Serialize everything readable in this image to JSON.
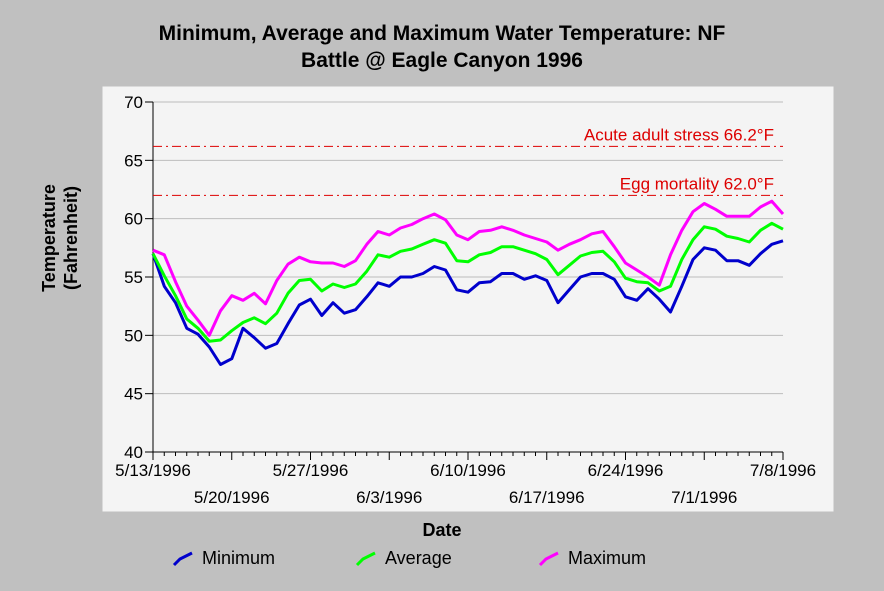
{
  "title_line1": "Minimum, Average and Maximum Water Temperature: NF",
  "title_line2": "Battle @ Eagle Canyon 1996",
  "chart_data": {
    "type": "line",
    "title": "Minimum, Average and Maximum Water Temperature: NF Battle @ Eagle Canyon 1996",
    "xlabel": "Date",
    "ylabel_line1": "Temperature",
    "ylabel_line2": "(Fahrenheit)",
    "ylim": [
      40,
      70
    ],
    "yticks": [
      40,
      45,
      50,
      55,
      60,
      65,
      70
    ],
    "xlim": [
      "1996-05-13",
      "1996-07-08"
    ],
    "xticks_top_row": [
      "5/13/1996",
      "5/27/1996",
      "6/10/1996",
      "6/24/1996",
      "7/8/1996"
    ],
    "xticks_bottom_row": [
      "5/20/1996",
      "6/3/1996",
      "6/17/1996",
      "7/1/1996"
    ],
    "grid": true,
    "legend_position": "bottom",
    "x": [
      "1996-05-13",
      "1996-05-14",
      "1996-05-15",
      "1996-05-16",
      "1996-05-17",
      "1996-05-18",
      "1996-05-19",
      "1996-05-20",
      "1996-05-21",
      "1996-05-22",
      "1996-05-23",
      "1996-05-24",
      "1996-05-25",
      "1996-05-26",
      "1996-05-27",
      "1996-05-28",
      "1996-05-29",
      "1996-05-30",
      "1996-05-31",
      "1996-06-01",
      "1996-06-02",
      "1996-06-03",
      "1996-06-04",
      "1996-06-05",
      "1996-06-06",
      "1996-06-07",
      "1996-06-08",
      "1996-06-09",
      "1996-06-10",
      "1996-06-11",
      "1996-06-12",
      "1996-06-13",
      "1996-06-14",
      "1996-06-15",
      "1996-06-16",
      "1996-06-17",
      "1996-06-18",
      "1996-06-19",
      "1996-06-20",
      "1996-06-21",
      "1996-06-22",
      "1996-06-23",
      "1996-06-24",
      "1996-06-25",
      "1996-06-26",
      "1996-06-27",
      "1996-06-28",
      "1996-06-29",
      "1996-06-30",
      "1996-07-01",
      "1996-07-02",
      "1996-07-03",
      "1996-07-04",
      "1996-07-05",
      "1996-07-06",
      "1996-07-07",
      "1996-07-08"
    ],
    "series": [
      {
        "name": "Minimum",
        "color": "#0000cc",
        "values": [
          57.0,
          54.2,
          52.8,
          50.6,
          50.1,
          49.0,
          47.5,
          48.0,
          50.6,
          49.8,
          48.9,
          49.3,
          51.0,
          52.6,
          53.1,
          51.7,
          52.8,
          51.9,
          52.2,
          53.3,
          54.5,
          54.2,
          55.0,
          55.0,
          55.3,
          55.9,
          55.6,
          53.9,
          53.7,
          54.5,
          54.6,
          55.3,
          55.3,
          54.8,
          55.1,
          54.7,
          52.8,
          53.9,
          55.0,
          55.3,
          55.3,
          54.8,
          53.3,
          53.0,
          54.0,
          53.1,
          52.0,
          54.2,
          56.5,
          57.5,
          57.3,
          56.4,
          56.4,
          56.0,
          57.0,
          57.8,
          58.1
        ]
      },
      {
        "name": "Average",
        "color": "#00ff00",
        "values": [
          57.0,
          55.1,
          53.4,
          51.4,
          50.6,
          49.5,
          49.6,
          50.4,
          51.1,
          51.5,
          51.0,
          51.9,
          53.6,
          54.7,
          54.8,
          53.8,
          54.4,
          54.1,
          54.4,
          55.5,
          56.9,
          56.7,
          57.2,
          57.4,
          57.8,
          58.2,
          57.9,
          56.4,
          56.3,
          56.9,
          57.1,
          57.6,
          57.6,
          57.3,
          57.0,
          56.5,
          55.2,
          56.0,
          56.8,
          57.1,
          57.2,
          56.3,
          54.9,
          54.6,
          54.5,
          53.8,
          54.2,
          56.5,
          58.2,
          59.3,
          59.1,
          58.5,
          58.3,
          58.0,
          59.0,
          59.6,
          59.1
        ]
      },
      {
        "name": "Maximum",
        "color": "#ff00ff",
        "values": [
          57.3,
          56.9,
          54.6,
          52.5,
          51.3,
          50.0,
          52.1,
          53.4,
          53.0,
          53.6,
          52.7,
          54.7,
          56.1,
          56.7,
          56.3,
          56.2,
          56.2,
          55.9,
          56.4,
          57.8,
          58.9,
          58.6,
          59.2,
          59.5,
          60.0,
          60.4,
          59.9,
          58.6,
          58.2,
          58.9,
          59.0,
          59.3,
          59.0,
          58.6,
          58.3,
          58.0,
          57.3,
          57.8,
          58.2,
          58.7,
          58.9,
          57.6,
          56.2,
          55.6,
          55.0,
          54.3,
          56.9,
          59.0,
          60.6,
          61.3,
          60.8,
          60.2,
          60.2,
          60.2,
          61.0,
          61.5,
          60.4
        ]
      }
    ],
    "reference_lines": [
      {
        "value": 66.2,
        "label": "Acute adult stress 66.2°F",
        "color": "#dd0000"
      },
      {
        "value": 62.0,
        "label": "Egg mortality 62.0°F",
        "color": "#dd0000"
      }
    ]
  }
}
